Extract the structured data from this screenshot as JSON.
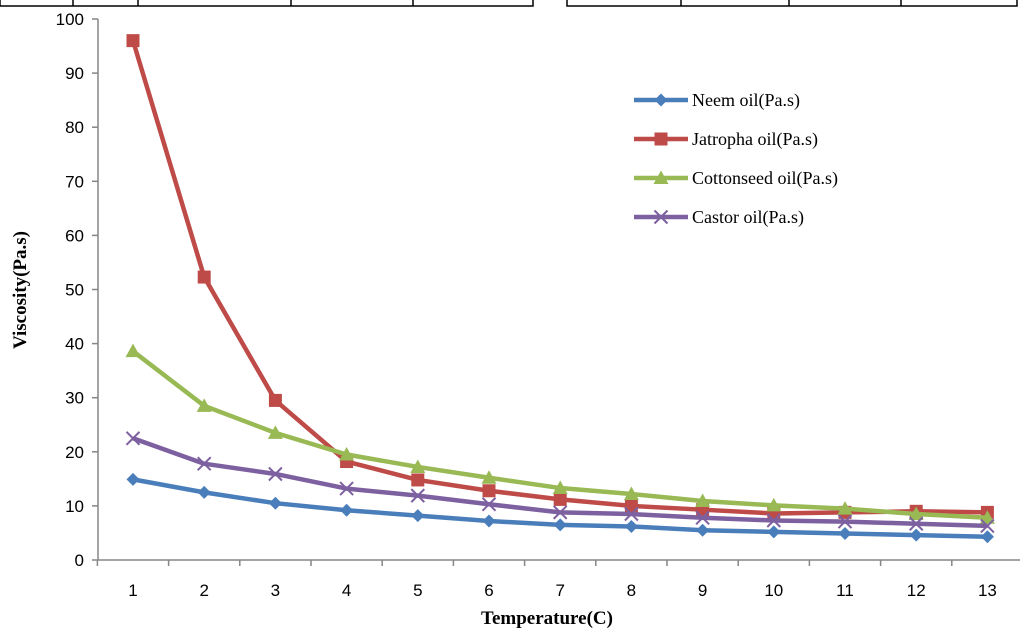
{
  "chart_data": {
    "type": "line",
    "title": "",
    "xlabel": "Temperature(C)",
    "ylabel": "Viscosity(Pa.s)",
    "x": [
      1,
      2,
      3,
      4,
      5,
      6,
      7,
      8,
      9,
      10,
      11,
      12,
      13
    ],
    "ylim": [
      0,
      100
    ],
    "yticks": [
      0,
      10,
      20,
      30,
      40,
      50,
      60,
      70,
      80,
      90,
      100
    ],
    "grid": false,
    "legend_position": "top-right",
    "series": [
      {
        "name": "Neem oil(Pa.s)",
        "color": "#4a7ebb",
        "marker": "diamond",
        "values": [
          14.9,
          12.5,
          10.5,
          9.2,
          8.2,
          7.2,
          6.5,
          6.2,
          5.5,
          5.2,
          4.9,
          4.6,
          4.3
        ]
      },
      {
        "name": "Jatropha oil(Pa.s)",
        "color": "#be4b48",
        "marker": "square",
        "values": [
          96,
          52.3,
          29.5,
          18.2,
          14.8,
          12.8,
          11.2,
          10,
          9.3,
          8.6,
          8.8,
          9,
          8.8
        ]
      },
      {
        "name": "Cottonseed oil(Pa.s)",
        "color": "#98b954",
        "marker": "triangle",
        "values": [
          38.6,
          28.5,
          23.5,
          19.5,
          17.2,
          15.2,
          13.3,
          12.2,
          10.9,
          10.1,
          9.5,
          8.5,
          7.8
        ]
      },
      {
        "name": "Castor oil(Pa.s)",
        "color": "#7d60a0",
        "marker": "x",
        "values": [
          22.5,
          17.8,
          15.9,
          13.2,
          11.9,
          10.3,
          8.8,
          8.5,
          7.8,
          7.3,
          7.1,
          6.7,
          6.3
        ]
      }
    ]
  }
}
